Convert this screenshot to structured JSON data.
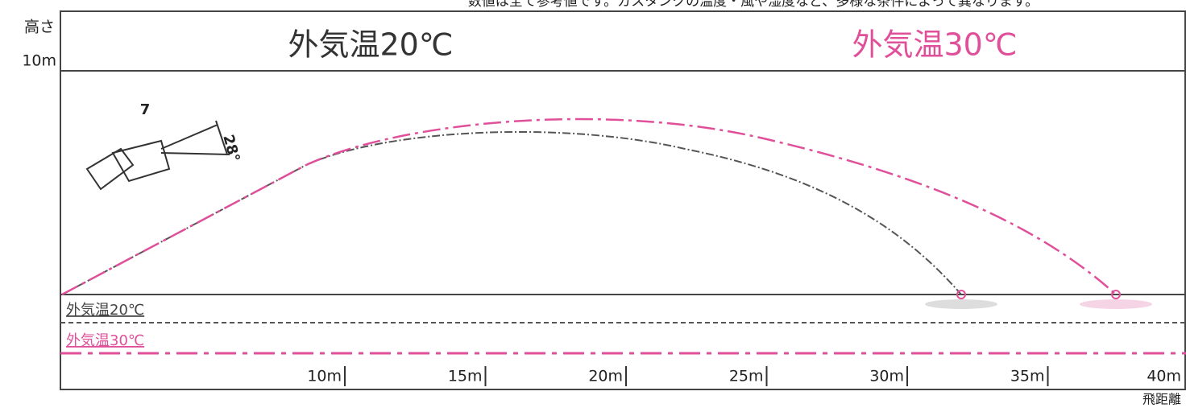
{
  "header": {
    "note": "数値は全て参考値です。ガスタンクの温度・風や湿度など、多様な条件によって異なります。",
    "y_axis_label": "高さ",
    "y_max_label": "10m",
    "title_20": "外気温20℃",
    "title_30": "外気温30℃"
  },
  "gun": {
    "label": "7",
    "angle": "28°"
  },
  "legend": [
    "外気温20℃",
    "外気温30℃"
  ],
  "x_axis": {
    "ticks": [
      "10m",
      "15m",
      "20m",
      "25m",
      "30m",
      "35m",
      "40m"
    ],
    "label": "飛距離"
  }
}
